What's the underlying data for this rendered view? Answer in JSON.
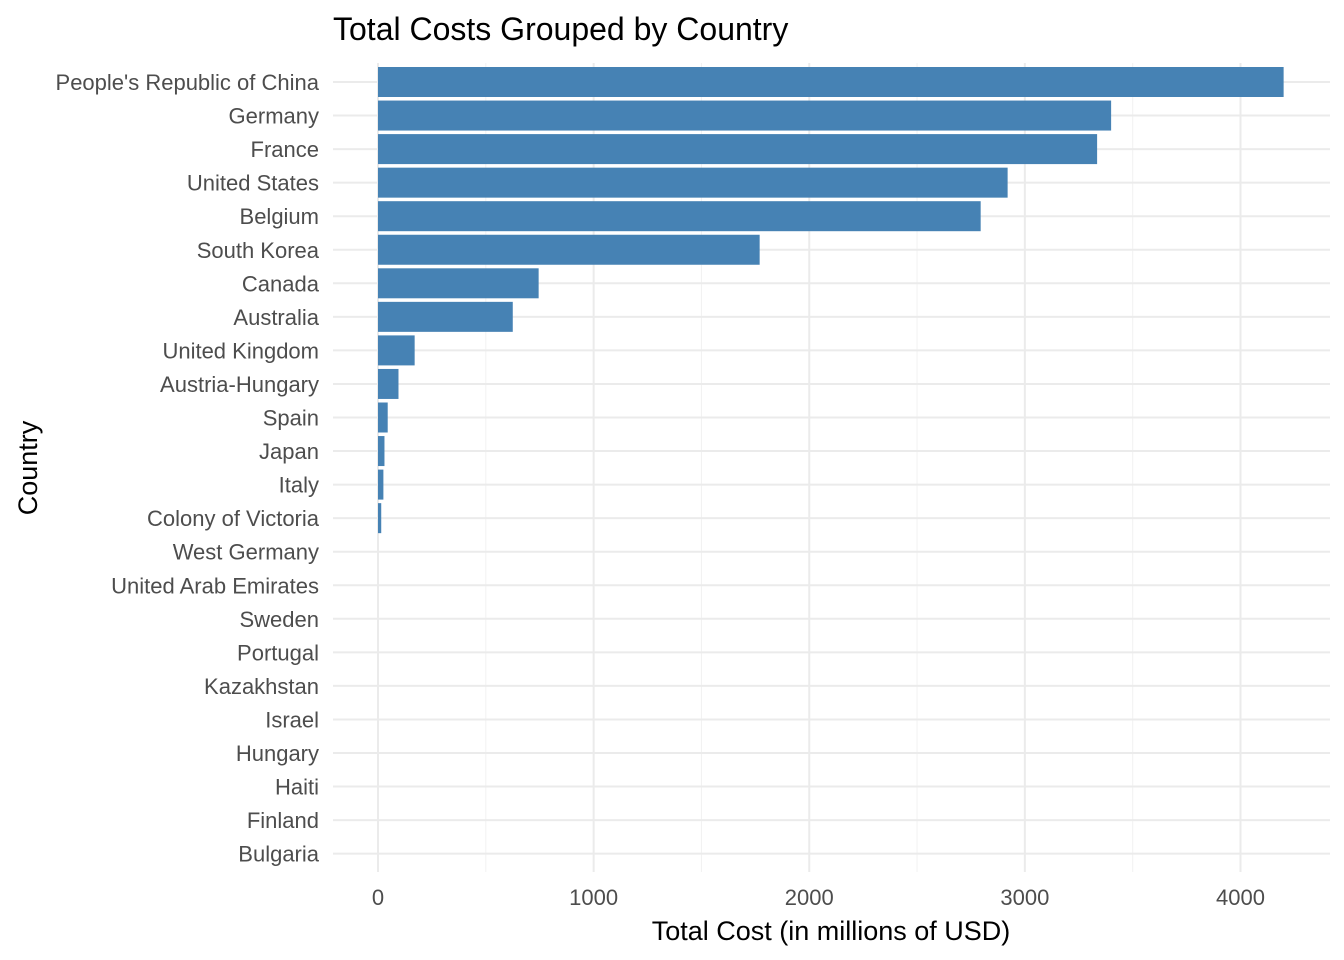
{
  "chart_data": {
    "type": "bar",
    "orientation": "horizontal",
    "title": "Total Costs Grouped by Country",
    "xlabel": "Total Cost (in millions of USD)",
    "ylabel": "Country",
    "xlim": [
      0,
      4200
    ],
    "x_ticks": [
      0,
      1000,
      2000,
      3000,
      4000
    ],
    "grid": true,
    "bar_color": "#4682B4",
    "categories": [
      "People's Republic of China",
      "Germany",
      "France",
      "United States",
      "Belgium",
      "South Korea",
      "Canada",
      "Australia",
      "United Kingdom",
      "Austria-Hungary",
      "Spain",
      "Japan",
      "Italy",
      "Colony of Victoria",
      "West Germany",
      "United Arab Emirates",
      "Sweden",
      "Portugal",
      "Kazakhstan",
      "Israel",
      "Hungary",
      "Haiti",
      "Finland",
      "Bulgaria"
    ],
    "values": [
      4200,
      3400,
      3335,
      2920,
      2795,
      1770,
      745,
      625,
      170,
      95,
      45,
      30,
      25,
      15,
      0,
      0,
      0,
      0,
      0,
      0,
      0,
      0,
      0,
      0
    ]
  }
}
